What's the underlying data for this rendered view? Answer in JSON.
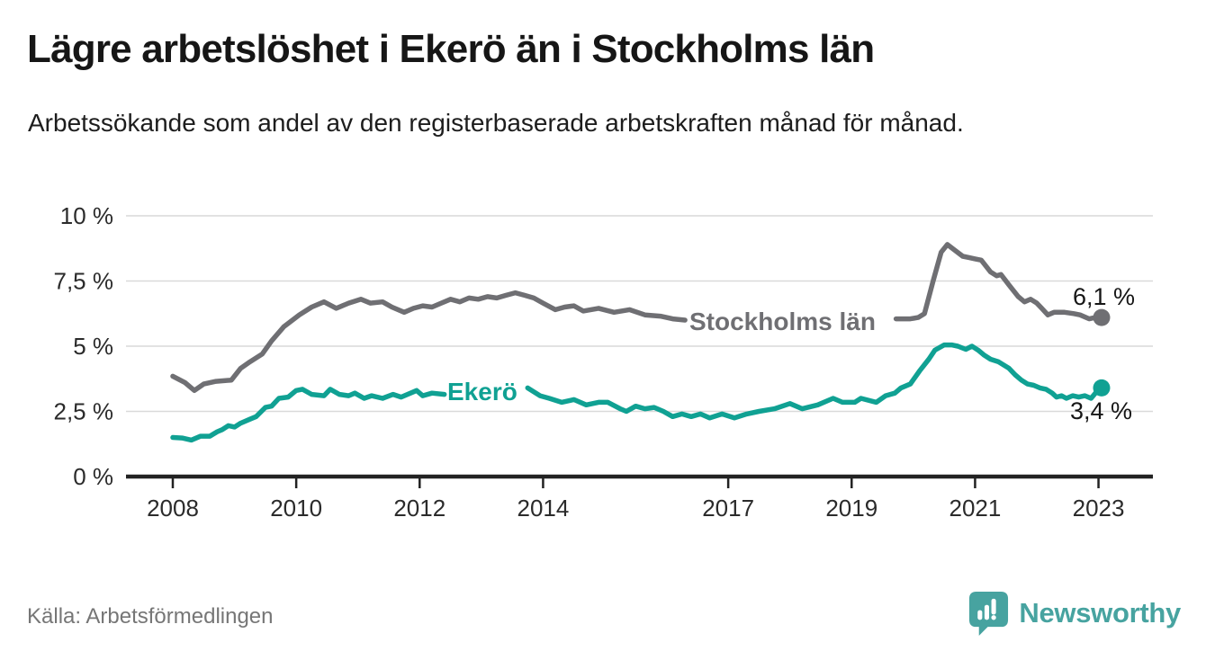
{
  "header": {
    "title": "Lägre arbetslöshet i Ekerö än i Stockholms län",
    "subtitle": "Arbetssökande som andel av den registerbaserade arbetskraften månad för månad."
  },
  "footer": {
    "source": "Källa: Arbetsförmedlingen",
    "brand_name": "Newsworthy",
    "brand_icon": "speech-bubble-bar-chart-icon",
    "brand_color": "#47a3a0"
  },
  "colors": {
    "stockholm_line": "#6f6f73",
    "ekero_line": "#10a193",
    "gridline": "#d9d9d9",
    "axis": "#222222",
    "tick_text": "#2b2b2b",
    "annotation_text": "#161616",
    "muted_text": "#767676",
    "background": "#ffffff"
  },
  "chart_data": {
    "type": "line",
    "title": "Lägre arbetslöshet i Ekerö än i Stockholms län",
    "subtitle": "Arbetssökande som andel av den registerbaserade arbetskraften månad för månad.",
    "unit": "%",
    "grid": "horizontal-only",
    "legend_position": "inline-on-line",
    "x_axis": {
      "ticks": [
        2008,
        2010,
        2012,
        2014,
        2017,
        2019,
        2021,
        2023
      ],
      "tick_labels": [
        "2008",
        "2010",
        "2012",
        "2014",
        "2017",
        "2019",
        "2021",
        "2023"
      ],
      "range": [
        2007.25,
        2023.9
      ]
    },
    "y_axis": {
      "ticks": [
        {
          "value": 0,
          "label": "0 %"
        },
        {
          "value": 2.5,
          "label": "2,5 %"
        },
        {
          "value": 5,
          "label": "5 %"
        },
        {
          "value": 7.5,
          "label": "7,5 %"
        },
        {
          "value": 10,
          "label": "10 %"
        }
      ],
      "range": [
        0,
        10
      ]
    },
    "series": [
      {
        "name": "Stockholms län",
        "color": "#6f6f73",
        "end_value": 6.1,
        "end_label": "6,1 %",
        "note": "line interrupted by inline name label between 2016.3 and 2019.7",
        "segments": [
          [
            [
              2008.0,
              3.85
            ],
            [
              2008.2,
              3.6
            ],
            [
              2008.35,
              3.3
            ],
            [
              2008.5,
              3.55
            ],
            [
              2008.7,
              3.65
            ],
            [
              2008.95,
              3.7
            ],
            [
              2009.1,
              4.15
            ],
            [
              2009.25,
              4.4
            ],
            [
              2009.45,
              4.7
            ],
            [
              2009.6,
              5.2
            ],
            [
              2009.8,
              5.75
            ],
            [
              2010.05,
              6.2
            ],
            [
              2010.25,
              6.5
            ],
            [
              2010.45,
              6.7
            ],
            [
              2010.65,
              6.45
            ],
            [
              2010.85,
              6.65
            ],
            [
              2011.05,
              6.8
            ],
            [
              2011.2,
              6.65
            ],
            [
              2011.4,
              6.7
            ],
            [
              2011.55,
              6.5
            ],
            [
              2011.75,
              6.3
            ],
            [
              2011.9,
              6.45
            ],
            [
              2012.05,
              6.55
            ],
            [
              2012.2,
              6.5
            ],
            [
              2012.35,
              6.65
            ],
            [
              2012.5,
              6.8
            ],
            [
              2012.65,
              6.7
            ],
            [
              2012.8,
              6.85
            ],
            [
              2012.95,
              6.8
            ],
            [
              2013.1,
              6.9
            ],
            [
              2013.25,
              6.85
            ],
            [
              2013.4,
              6.95
            ],
            [
              2013.55,
              7.05
            ],
            [
              2013.7,
              6.95
            ],
            [
              2013.85,
              6.85
            ],
            [
              2014.0,
              6.65
            ],
            [
              2014.2,
              6.4
            ],
            [
              2014.35,
              6.5
            ],
            [
              2014.5,
              6.55
            ],
            [
              2014.65,
              6.35
            ],
            [
              2014.9,
              6.45
            ],
            [
              2015.15,
              6.3
            ],
            [
              2015.4,
              6.4
            ],
            [
              2015.65,
              6.2
            ],
            [
              2015.9,
              6.15
            ],
            [
              2016.1,
              6.05
            ],
            [
              2016.3,
              6.0
            ]
          ],
          [
            [
              2019.72,
              6.05
            ],
            [
              2019.95,
              6.05
            ],
            [
              2020.08,
              6.1
            ],
            [
              2020.18,
              6.25
            ],
            [
              2020.32,
              7.5
            ],
            [
              2020.45,
              8.6
            ],
            [
              2020.55,
              8.9
            ],
            [
              2020.66,
              8.7
            ],
            [
              2020.8,
              8.45
            ],
            [
              2020.9,
              8.4
            ],
            [
              2021.0,
              8.35
            ],
            [
              2021.1,
              8.3
            ],
            [
              2021.25,
              7.85
            ],
            [
              2021.35,
              7.7
            ],
            [
              2021.42,
              7.75
            ],
            [
              2021.55,
              7.35
            ],
            [
              2021.7,
              6.9
            ],
            [
              2021.8,
              6.7
            ],
            [
              2021.9,
              6.8
            ],
            [
              2022.0,
              6.65
            ],
            [
              2022.08,
              6.45
            ],
            [
              2022.18,
              6.2
            ],
            [
              2022.28,
              6.3
            ],
            [
              2022.45,
              6.3
            ],
            [
              2022.6,
              6.25
            ],
            [
              2022.7,
              6.2
            ],
            [
              2022.85,
              6.05
            ],
            [
              2022.95,
              6.1
            ],
            [
              2023.05,
              6.1
            ]
          ]
        ]
      },
      {
        "name": "Ekerö",
        "color": "#10a193",
        "end_value": 3.4,
        "end_label": "3,4 %",
        "note": "line interrupted by inline name label between 2012.4 and 2013.75",
        "segments": [
          [
            [
              2008.0,
              1.5
            ],
            [
              2008.15,
              1.48
            ],
            [
              2008.3,
              1.4
            ],
            [
              2008.45,
              1.55
            ],
            [
              2008.6,
              1.55
            ],
            [
              2008.72,
              1.72
            ],
            [
              2008.8,
              1.8
            ],
            [
              2008.9,
              1.95
            ],
            [
              2009.0,
              1.9
            ],
            [
              2009.1,
              2.05
            ],
            [
              2009.25,
              2.2
            ],
            [
              2009.35,
              2.3
            ],
            [
              2009.5,
              2.65
            ],
            [
              2009.6,
              2.7
            ],
            [
              2009.72,
              3.0
            ],
            [
              2009.87,
              3.05
            ],
            [
              2010.0,
              3.3
            ],
            [
              2010.1,
              3.35
            ],
            [
              2010.25,
              3.15
            ],
            [
              2010.45,
              3.1
            ],
            [
              2010.55,
              3.35
            ],
            [
              2010.7,
              3.15
            ],
            [
              2010.85,
              3.1
            ],
            [
              2010.95,
              3.2
            ],
            [
              2011.1,
              3.0
            ],
            [
              2011.22,
              3.1
            ],
            [
              2011.4,
              3.0
            ],
            [
              2011.57,
              3.15
            ],
            [
              2011.7,
              3.05
            ],
            [
              2011.95,
              3.3
            ],
            [
              2012.05,
              3.1
            ],
            [
              2012.2,
              3.2
            ],
            [
              2012.4,
              3.15
            ]
          ],
          [
            [
              2013.75,
              3.4
            ],
            [
              2013.95,
              3.1
            ],
            [
              2014.1,
              3.0
            ],
            [
              2014.3,
              2.85
            ],
            [
              2014.5,
              2.95
            ],
            [
              2014.7,
              2.75
            ],
            [
              2014.9,
              2.85
            ],
            [
              2015.05,
              2.85
            ],
            [
              2015.25,
              2.6
            ],
            [
              2015.35,
              2.5
            ],
            [
              2015.5,
              2.7
            ],
            [
              2015.65,
              2.6
            ],
            [
              2015.8,
              2.65
            ],
            [
              2015.95,
              2.5
            ],
            [
              2016.1,
              2.3
            ],
            [
              2016.25,
              2.4
            ],
            [
              2016.4,
              2.3
            ],
            [
              2016.55,
              2.4
            ],
            [
              2016.7,
              2.25
            ],
            [
              2016.9,
              2.4
            ],
            [
              2017.1,
              2.25
            ],
            [
              2017.3,
              2.4
            ],
            [
              2017.5,
              2.5
            ],
            [
              2017.75,
              2.6
            ],
            [
              2018.0,
              2.8
            ],
            [
              2018.2,
              2.6
            ],
            [
              2018.45,
              2.75
            ],
            [
              2018.7,
              3.0
            ],
            [
              2018.85,
              2.85
            ],
            [
              2019.05,
              2.85
            ],
            [
              2019.15,
              3.0
            ],
            [
              2019.4,
              2.85
            ],
            [
              2019.55,
              3.1
            ],
            [
              2019.7,
              3.2
            ],
            [
              2019.8,
              3.4
            ],
            [
              2019.95,
              3.55
            ],
            [
              2020.1,
              4.05
            ],
            [
              2020.25,
              4.5
            ],
            [
              2020.35,
              4.85
            ],
            [
              2020.5,
              5.05
            ],
            [
              2020.62,
              5.05
            ],
            [
              2020.72,
              5.0
            ],
            [
              2020.85,
              4.88
            ],
            [
              2020.95,
              5.0
            ],
            [
              2021.05,
              4.85
            ],
            [
              2021.15,
              4.65
            ],
            [
              2021.25,
              4.5
            ],
            [
              2021.38,
              4.4
            ],
            [
              2021.55,
              4.15
            ],
            [
              2021.65,
              3.9
            ],
            [
              2021.75,
              3.7
            ],
            [
              2021.85,
              3.55
            ],
            [
              2021.95,
              3.5
            ],
            [
              2022.05,
              3.4
            ],
            [
              2022.15,
              3.35
            ],
            [
              2022.25,
              3.2
            ],
            [
              2022.32,
              3.05
            ],
            [
              2022.4,
              3.1
            ],
            [
              2022.48,
              3.0
            ],
            [
              2022.58,
              3.1
            ],
            [
              2022.68,
              3.05
            ],
            [
              2022.78,
              3.1
            ],
            [
              2022.88,
              3.0
            ],
            [
              2022.95,
              3.2
            ],
            [
              2023.05,
              3.4
            ]
          ]
        ]
      }
    ]
  }
}
